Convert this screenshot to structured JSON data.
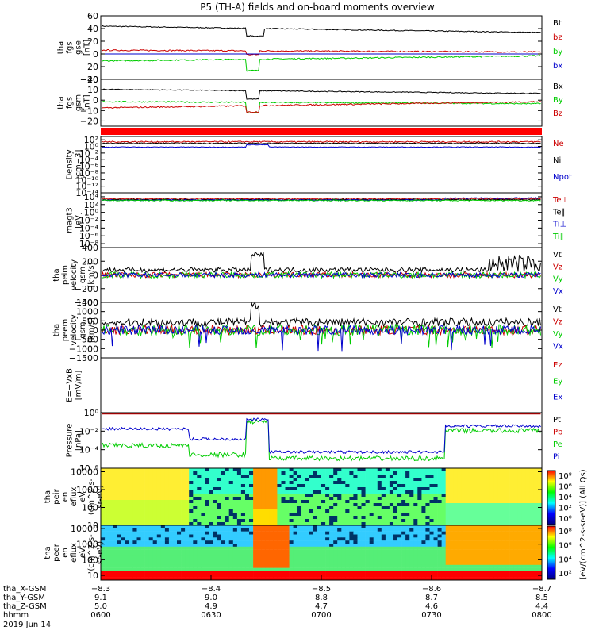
{
  "title": "P5 (TH-A) fields and on-board moments overview",
  "colors": {
    "black": "#000000",
    "red": "#cc0000",
    "green": "#00cc00",
    "blue": "#0000cc"
  },
  "chart_data": [
    {
      "type": "line",
      "ylabel": [
        "tha",
        "fgs",
        "gse",
        "[nT]"
      ],
      "ylim": [
        -40,
        60
      ],
      "yticks": [
        "60",
        "40",
        "20",
        "0",
        "−20",
        "−40"
      ],
      "yvals": [
        60,
        40,
        20,
        0,
        -20,
        -40
      ],
      "series": [
        {
          "name": "Bt",
          "color": "black"
        },
        {
          "name": "bz",
          "color": "red"
        },
        {
          "name": "by",
          "color": "green"
        },
        {
          "name": "bx",
          "color": "blue"
        }
      ]
    },
    {
      "type": "line",
      "ylabel": [
        "tha",
        "fgs",
        "gsm",
        "[nT]"
      ],
      "ylim": [
        -25,
        20
      ],
      "yticks": [
        "20",
        "10",
        "0",
        "−10",
        "−20"
      ],
      "yvals": [
        20,
        10,
        0,
        -10,
        -20
      ],
      "series": [
        {
          "name": "Bx",
          "color": "black"
        },
        {
          "name": "By",
          "color": "green"
        },
        {
          "name": "Bz",
          "color": "red"
        }
      ]
    },
    {
      "type": "line",
      "ylabel": [
        "Density",
        "[cm−3]"
      ],
      "ylim": [
        -14,
        3
      ],
      "yticks": [
        "10²",
        "10⁰",
        "10⁻²",
        "10⁻⁴",
        "10⁻⁶",
        "10⁻⁸",
        "10⁻¹⁰",
        "10⁻¹²",
        "10⁻¹⁴"
      ],
      "yvals": [
        2,
        0,
        -2,
        -4,
        -6,
        -8,
        -10,
        -12,
        -14
      ],
      "series": [
        {
          "name": "Ne",
          "color": "red"
        },
        {
          "name": "Ni",
          "color": "black"
        },
        {
          "name": "Npot",
          "color": "blue"
        }
      ]
    },
    {
      "type": "line",
      "ylabel": [
        "magt3",
        "[eV]"
      ],
      "ylim": [
        -9,
        5
      ],
      "yticks": [
        "10⁴",
        "10²",
        "10⁰",
        "10⁻²",
        "10⁻⁴",
        "10⁻⁶",
        "10⁻⁸"
      ],
      "yvals": [
        4,
        2,
        0,
        -2,
        -4,
        -6,
        -8
      ],
      "series": [
        {
          "name": "Te⊥",
          "color": "red"
        },
        {
          "name": "Te∥",
          "color": "black"
        },
        {
          "name": "Ti⊥",
          "color": "blue"
        },
        {
          "name": "Ti∥",
          "color": "green"
        }
      ]
    },
    {
      "type": "line",
      "ylabel": [
        "tha",
        "peim",
        "velocity",
        "gsm",
        "[km/s]"
      ],
      "ylim": [
        -400,
        400
      ],
      "yticks": [
        "400",
        "200",
        "0",
        "−200",
        "−400"
      ],
      "yvals": [
        400,
        200,
        0,
        -200,
        -400
      ],
      "series": [
        {
          "name": "Vt",
          "color": "black"
        },
        {
          "name": "Vz",
          "color": "red"
        },
        {
          "name": "Vy",
          "color": "green"
        },
        {
          "name": "Vx",
          "color": "blue"
        }
      ]
    },
    {
      "type": "line",
      "ylabel": [
        "tha",
        "peem",
        "velocity",
        "gsm",
        "[km/s]"
      ],
      "ylim": [
        -1500,
        1500
      ],
      "yticks": [
        "1500",
        "1000",
        "500",
        "0",
        "−500",
        "−1000",
        "−1500"
      ],
      "yvals": [
        1500,
        1000,
        500,
        0,
        -500,
        -1000,
        -1500
      ],
      "series": [
        {
          "name": "Vt",
          "color": "black"
        },
        {
          "name": "Vz",
          "color": "red"
        },
        {
          "name": "Vy",
          "color": "green"
        },
        {
          "name": "Vx",
          "color": "blue"
        }
      ]
    },
    {
      "type": "line",
      "ylabel": [
        "E=−VxB",
        "[mV/m]"
      ],
      "ylim": [
        0,
        1
      ],
      "yticks": [],
      "yvals": [],
      "series": [
        {
          "name": "Ez",
          "color": "red"
        },
        {
          "name": "Ey",
          "color": "green"
        },
        {
          "name": "Ex",
          "color": "blue"
        }
      ]
    },
    {
      "type": "line",
      "ylabel": [
        "Pressure",
        "[nPa]"
      ],
      "ylim": [
        -6,
        0
      ],
      "yticks": [
        "10⁰",
        "10⁻²",
        "10⁻⁴",
        "10⁻⁶"
      ],
      "yvals": [
        0,
        -2,
        -4,
        -6
      ],
      "series": [
        {
          "name": "Pt",
          "color": "black"
        },
        {
          "name": "Pb",
          "color": "red"
        },
        {
          "name": "Pe",
          "color": "green"
        },
        {
          "name": "Pi",
          "color": "blue"
        }
      ]
    },
    {
      "type": "heatmap",
      "ylabel": [
        "tha",
        "peir",
        "en",
        "eflux",
        "eV",
        "(cm^2-s-",
        "sr-eV)"
      ],
      "ylim": [
        1,
        4.2
      ],
      "yticks": [
        "10000",
        "1000",
        "100",
        "10"
      ],
      "yvals": [
        4,
        3,
        2,
        1
      ]
    },
    {
      "type": "heatmap",
      "ylabel": [
        "tha",
        "peer",
        "en",
        "eflux",
        "eV",
        "(cm^2-s-",
        "sr-eV)"
      ],
      "ylim": [
        0.7,
        4.2
      ],
      "yticks": [
        "10000",
        "1000",
        "100",
        "10"
      ],
      "yvals": [
        4,
        3,
        2,
        1
      ]
    }
  ],
  "colorbar_ion": {
    "ticks": [
      "10⁸",
      "10⁶",
      "10⁴",
      "10²",
      "10⁰"
    ]
  },
  "colorbar_elec": {
    "ticks": [
      "10⁸",
      "10⁶",
      "10⁴",
      "10²"
    ]
  },
  "colorbar_label": "[eV/(cm^2-s-sr-eV)] (All Qs)",
  "xaxis": {
    "ticks": [
      "−8.3",
      "−8.4",
      "−8.5",
      "−8.6",
      "−8.7"
    ]
  },
  "ephemeris": [
    {
      "label": "tha_X-GSM",
      "values": [
        "−8.3",
        "−8.4",
        "−8.5",
        "−8.6",
        "−8.7"
      ]
    },
    {
      "label": "tha_Y-GSM",
      "values": [
        "9.1",
        "9.0",
        "8.8",
        "8.7",
        "8.5"
      ]
    },
    {
      "label": "tha_Z-GSM",
      "values": [
        "5.0",
        "4.9",
        "4.7",
        "4.6",
        "4.4"
      ]
    },
    {
      "label": "hhmm",
      "values": [
        "0600",
        "0630",
        "0700",
        "0730",
        "0800"
      ]
    }
  ],
  "date": "2019 Jun 14"
}
